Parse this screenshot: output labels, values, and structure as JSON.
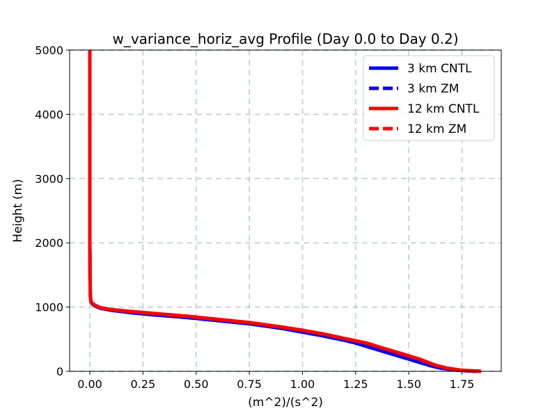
{
  "chart_data": {
    "type": "line",
    "title": "w_variance_horiz_avg Profile (Day 0.0 to Day 0.2)",
    "xlabel": "(m^2)/(s^2)",
    "ylabel": "Height (m)",
    "xlim": [
      -0.095,
      1.935
    ],
    "ylim": [
      0,
      5000
    ],
    "xticks": [
      0.0,
      0.25,
      0.5,
      0.75,
      1.0,
      1.25,
      1.5,
      1.75
    ],
    "xtick_labels": [
      "0.00",
      "0.25",
      "0.50",
      "0.75",
      "1.00",
      "1.25",
      "1.50",
      "1.75"
    ],
    "yticks": [
      0,
      1000,
      2000,
      3000,
      4000,
      5000
    ],
    "ytick_labels": [
      "0",
      "1000",
      "2000",
      "3000",
      "4000",
      "5000"
    ],
    "grid": true,
    "legend_position": "top-right",
    "series": [
      {
        "name": "3 km CNTL",
        "color": "#0000ee",
        "style": "solid",
        "x": [
          1.82,
          1.72,
          1.65,
          1.6,
          1.55,
          1.5,
          1.45,
          1.4,
          1.35,
          1.3,
          1.25,
          1.2,
          1.1,
          1.0,
          0.9,
          0.75,
          0.6,
          0.45,
          0.3,
          0.2,
          0.1,
          0.05,
          0.03,
          0.015,
          0.005,
          0.002,
          0.0,
          0.0
        ],
        "y": [
          0,
          20,
          50,
          90,
          140,
          190,
          240,
          290,
          340,
          390,
          440,
          480,
          550,
          610,
          670,
          740,
          790,
          840,
          880,
          910,
          950,
          980,
          1010,
          1040,
          1080,
          1200,
          2000,
          5000
        ]
      },
      {
        "name": "3 km ZM",
        "color": "#0000ee",
        "style": "dashed",
        "x": [
          1.82,
          1.72,
          1.65,
          1.6,
          1.55,
          1.5,
          1.45,
          1.4,
          1.35,
          1.3,
          1.25,
          1.2,
          1.1,
          1.0,
          0.9,
          0.75,
          0.6,
          0.45,
          0.3,
          0.2,
          0.1,
          0.05,
          0.03,
          0.015,
          0.005,
          0.002,
          0.0,
          0.0
        ],
        "y": [
          0,
          20,
          50,
          90,
          140,
          190,
          240,
          290,
          340,
          390,
          440,
          480,
          550,
          610,
          670,
          740,
          790,
          840,
          880,
          910,
          950,
          980,
          1010,
          1040,
          1080,
          1200,
          2000,
          5000
        ]
      },
      {
        "name": "12 km CNTL",
        "color": "#ff0000",
        "style": "solid",
        "x": [
          1.84,
          1.74,
          1.68,
          1.63,
          1.59,
          1.55,
          1.5,
          1.45,
          1.4,
          1.35,
          1.3,
          1.2,
          1.1,
          1.0,
          0.9,
          0.75,
          0.6,
          0.45,
          0.3,
          0.2,
          0.1,
          0.05,
          0.03,
          0.015,
          0.005,
          0.002,
          0.0,
          0.0
        ],
        "y": [
          0,
          20,
          50,
          90,
          140,
          190,
          240,
          290,
          340,
          390,
          440,
          510,
          580,
          640,
          690,
          760,
          810,
          860,
          900,
          930,
          960,
          990,
          1020,
          1050,
          1090,
          1200,
          2000,
          5000
        ]
      },
      {
        "name": "12 km ZM",
        "color": "#ff0000",
        "style": "dashed",
        "x": [
          1.84,
          1.74,
          1.68,
          1.63,
          1.59,
          1.55,
          1.5,
          1.45,
          1.4,
          1.35,
          1.3,
          1.2,
          1.1,
          1.0,
          0.9,
          0.75,
          0.6,
          0.45,
          0.3,
          0.2,
          0.1,
          0.05,
          0.03,
          0.015,
          0.005,
          0.002,
          0.0,
          0.0
        ],
        "y": [
          0,
          20,
          50,
          90,
          140,
          190,
          240,
          290,
          340,
          390,
          440,
          510,
          580,
          640,
          690,
          760,
          810,
          860,
          900,
          930,
          960,
          990,
          1020,
          1050,
          1090,
          1200,
          2000,
          5000
        ]
      }
    ]
  }
}
